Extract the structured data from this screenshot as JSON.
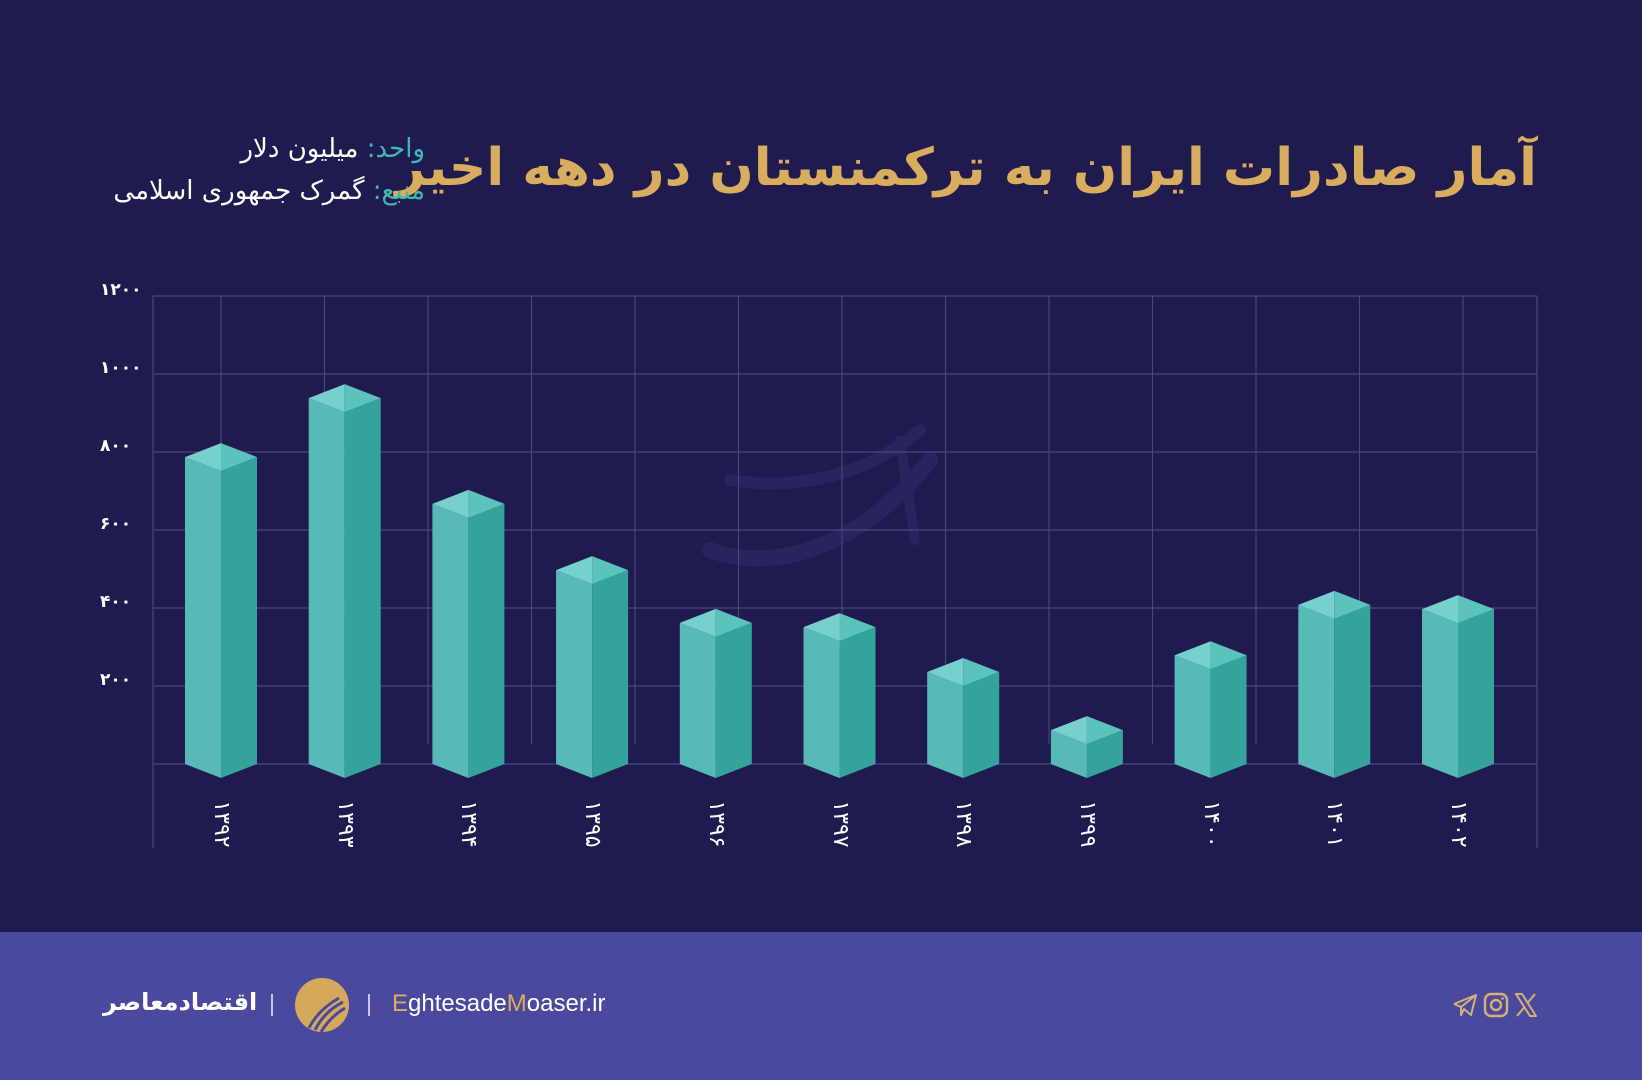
{
  "header": {
    "title": "آمار صادرات ایران به ترکمنستان در دهه اخیر",
    "unit_label": "واحد:",
    "unit_value": "میلیون دلار",
    "source_label": "منبع:",
    "source_value": "گمرک جمهوری اسلامی"
  },
  "colors": {
    "background": "#1f1b4e",
    "title": "#d9ad5e",
    "label_accent": "#3fb8b0",
    "bar_front_left": "#57bab6",
    "bar_front_right": "#33a39c",
    "bar_top_left": "#76d0cb",
    "bar_top_right": "#5cc2bc",
    "grid": "#4a4680",
    "footer": "#4a499e"
  },
  "chart_data": {
    "type": "bar",
    "title": "آمار صادرات ایران به ترکمنستان در دهه اخیر",
    "xlabel": "",
    "ylabel": "میلیون دلار",
    "categories": [
      "۱۳۹۲",
      "۱۳۹۳",
      "۱۳۹۴",
      "۱۳۹۵",
      "۱۳۹۶",
      "۱۳۹۷",
      "۱۳۹۸",
      "۱۳۹۹",
      "۱۴۰۰",
      "۱۴۰۱",
      "۱۴۰۲"
    ],
    "categories_latin": [
      "1392",
      "1393",
      "1394",
      "1395",
      "1396",
      "1397",
      "1398",
      "1399",
      "1400",
      "1401",
      "1402"
    ],
    "values": [
      787,
      938,
      667,
      497,
      362,
      351,
      236,
      87,
      279,
      408,
      397
    ],
    "yticks": [
      "۲۰۰",
      "۴۰۰",
      "۶۰۰",
      "۸۰۰",
      "۱۰۰۰",
      "۱۲۰۰"
    ],
    "ytick_values": [
      200,
      400,
      600,
      800,
      1000,
      1200
    ],
    "ylim": [
      0,
      1200
    ],
    "grid": true,
    "legend": null,
    "style": "3d-isometric-columns"
  },
  "footer": {
    "brand_fa": "اقتصادمعاصر",
    "site_part1": "E",
    "site_part2": "ghtesade",
    "site_part3": "M",
    "site_part4": "oaser.ir",
    "social_icons": [
      "telegram-icon",
      "instagram-icon",
      "x-icon"
    ]
  }
}
